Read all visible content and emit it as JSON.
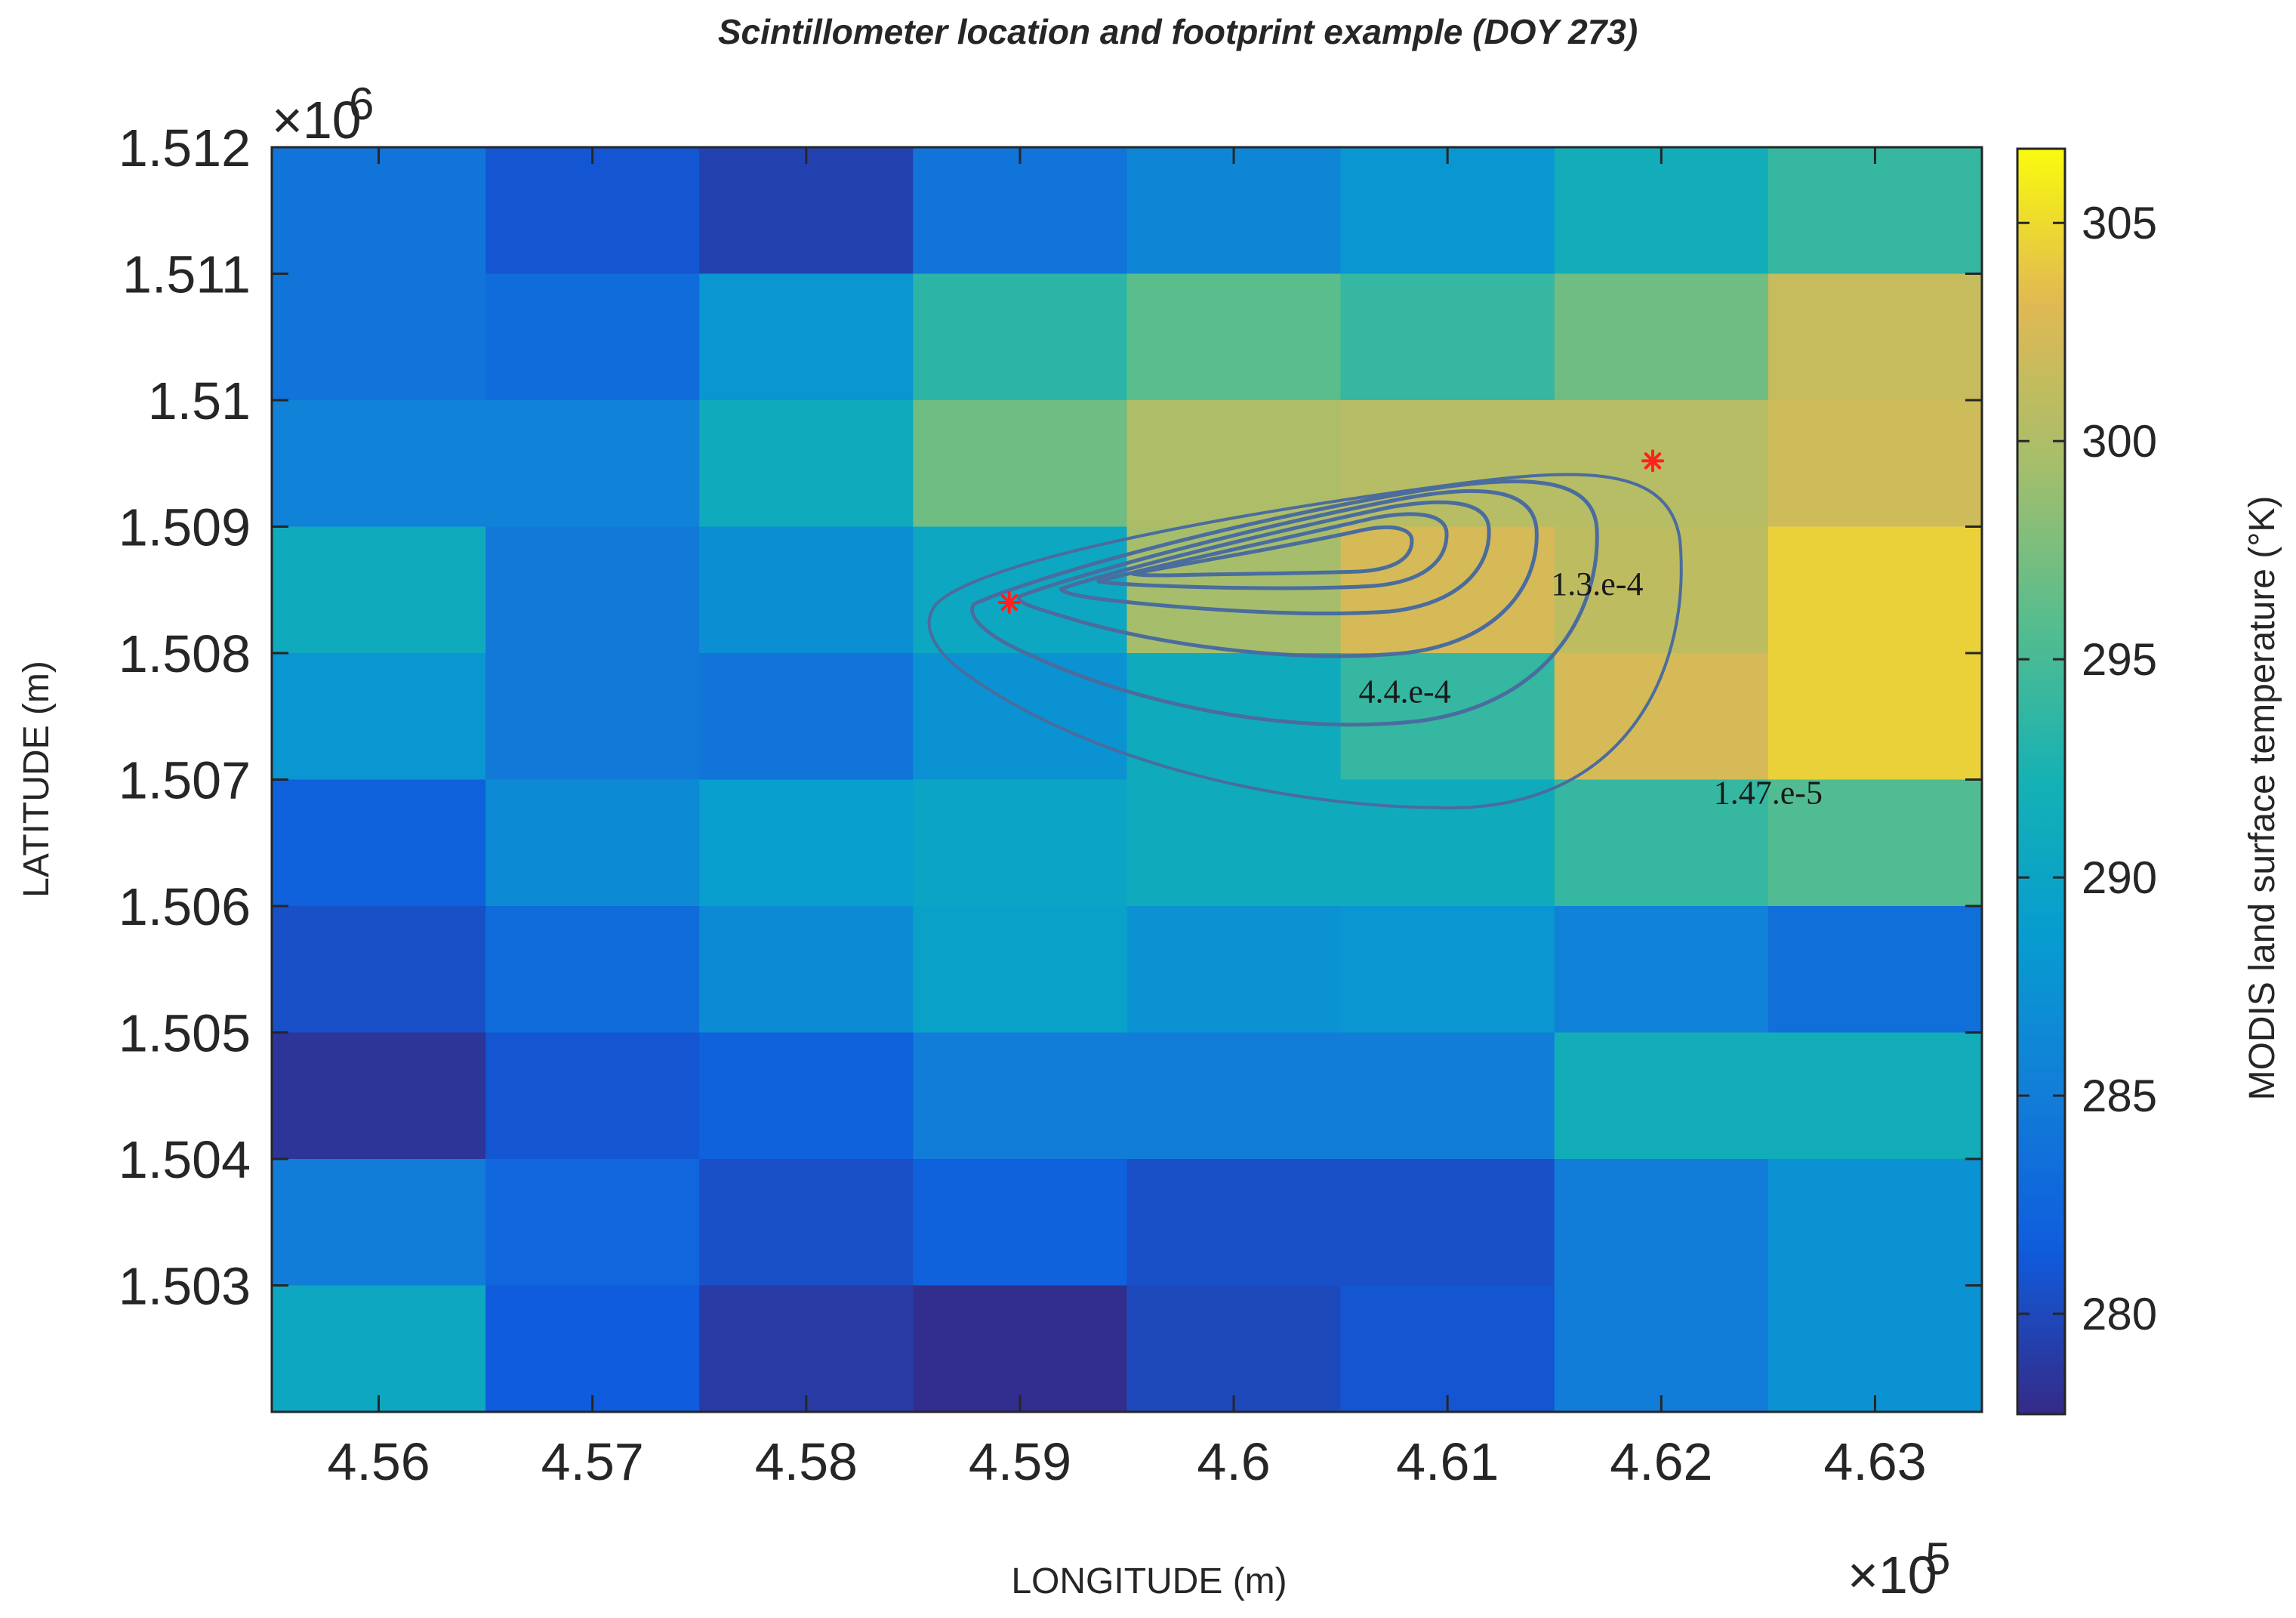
{
  "chart_data": {
    "type": "heatmap",
    "title": "Scintillometer location and footprint example (DOY 273)",
    "xlabel": "LONGITUDE (m)",
    "ylabel": "LATITUDE (m)",
    "x_exponent_label": "×10",
    "x_exponent_power": "5",
    "y_exponent_label": "×10",
    "y_exponent_power": "6",
    "xlim": [
      455500,
      463500
    ],
    "ylim": [
      1502000,
      1512000
    ],
    "x_ticks": [
      456000,
      457000,
      458000,
      459000,
      460000,
      461000,
      462000,
      463000
    ],
    "x_tick_labels": [
      "4.56",
      "4.57",
      "4.58",
      "4.59",
      "4.6",
      "4.61",
      "4.62",
      "4.63"
    ],
    "y_ticks": [
      1503000,
      1504000,
      1505000,
      1506000,
      1507000,
      1508000,
      1509000,
      1510000,
      1511000,
      1512000
    ],
    "y_tick_labels": [
      "1.503",
      "1.504",
      "1.505",
      "1.506",
      "1.507",
      "1.508",
      "1.509",
      "1.51",
      "1.511",
      "1.512"
    ],
    "x_cell_centers": [
      456000,
      457000,
      458000,
      459000,
      460000,
      461000,
      462000,
      463000
    ],
    "y_cell_centers": [
      1511500,
      1510500,
      1509500,
      1508500,
      1507500,
      1506500,
      1505500,
      1504500,
      1503500,
      1502500
    ],
    "grid_values": [
      [
        284,
        281,
        279.5,
        284,
        286,
        288,
        291.5,
        294
      ],
      [
        284,
        283,
        288,
        293.5,
        296,
        294,
        297,
        301.5
      ],
      [
        285.5,
        285.5,
        291,
        297,
        300,
        300.5,
        300.5,
        302
      ],
      [
        291,
        284.5,
        287,
        290.5,
        299.5,
        302.5,
        301,
        304.5
      ],
      [
        288,
        284.5,
        284,
        287.5,
        291,
        294,
        302.5,
        304.5
      ],
      [
        282,
        286.5,
        289,
        290,
        291,
        291,
        294,
        295.5
      ],
      [
        280.5,
        283,
        286.5,
        289.5,
        287.5,
        288,
        285.5,
        283.5
      ],
      [
        278.5,
        281,
        282,
        285,
        285,
        285,
        291.5,
        291.5
      ],
      [
        285,
        282.5,
        280.5,
        282,
        280.5,
        280.5,
        285,
        287.5
      ],
      [
        290.5,
        281.5,
        279,
        278,
        280,
        281,
        285,
        287.5
      ]
    ],
    "colorbar": {
      "label": "MODIS land surface temperature (°K)",
      "min": 277.7,
      "max": 306.7,
      "ticks": [
        280,
        285,
        290,
        295,
        300,
        305
      ],
      "tick_labels": [
        "280",
        "285",
        "290",
        "295",
        "300",
        "305"
      ],
      "colormap": "parula"
    },
    "markers": [
      {
        "x": 458950,
        "y": 1508400,
        "symbol": "*",
        "color": "#ff2020"
      },
      {
        "x": 461960,
        "y": 1509520,
        "symbol": "*",
        "color": "#ff2020"
      }
    ],
    "footprint_contours": {
      "color": "#4a6c9e",
      "levels": [
        {
          "label": "1.47.e-5",
          "x": 462500,
          "y": 1506900
        },
        {
          "label": "4.4.e-4",
          "x": 460800,
          "y": 1507700
        },
        {
          "label": "1.3.e-4",
          "x": 461700,
          "y": 1508550
        }
      ]
    }
  }
}
